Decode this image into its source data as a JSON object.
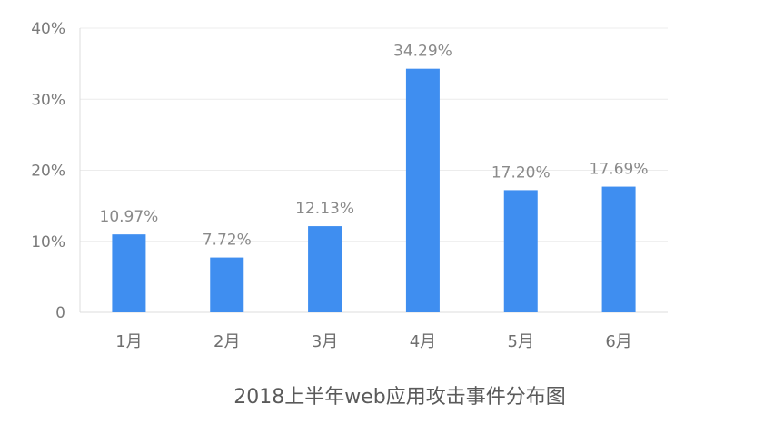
{
  "chart_data": {
    "type": "bar",
    "title": "2018上半年web应用攻击事件分布图",
    "xlabel": "",
    "ylabel": "",
    "categories": [
      "1月",
      "2月",
      "3月",
      "4月",
      "5月",
      "6月"
    ],
    "values": [
      10.97,
      7.72,
      12.13,
      34.29,
      17.2,
      17.69
    ],
    "value_labels": [
      "10.97%",
      "7.72%",
      "12.13%",
      "34.29%",
      "17.20%",
      "17.69%"
    ],
    "ylim": [
      0,
      40
    ],
    "yticks": [
      0,
      10,
      20,
      30,
      40
    ],
    "ytick_labels": [
      "0",
      "10%",
      "20%",
      "30%",
      "40%"
    ],
    "grid": true,
    "legend": "none",
    "bar_color": "#3f8ef0"
  }
}
